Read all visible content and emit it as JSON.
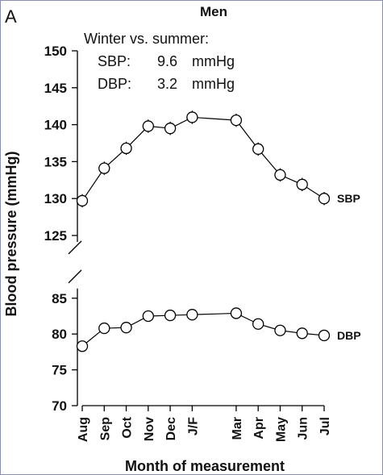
{
  "panel_label": "A",
  "annotation": {
    "heading": "Winter vs. summer:",
    "rows": [
      {
        "label": "SBP:",
        "value": "9.6",
        "unit": "mmHg"
      },
      {
        "label": "DBP:",
        "value": "3.2",
        "unit": "mmHg"
      }
    ]
  },
  "chart_data": {
    "type": "line",
    "title": "Men",
    "xlabel": "Month of measurement",
    "ylabel": "Blood pressure (mmHg)",
    "categories": [
      "Aug",
      "Sep",
      "Oct",
      "Nov",
      "Dec",
      "J/F",
      "Mar",
      "Apr",
      "May",
      "Jun",
      "Jul"
    ],
    "x_positions": [
      1,
      2,
      3,
      4,
      5,
      6,
      8,
      9,
      10,
      11,
      12
    ],
    "broken_y_axis": true,
    "upper_segment": {
      "ylim": [
        125,
        150
      ],
      "ticks": [
        125,
        130,
        135,
        140,
        145,
        150
      ]
    },
    "lower_segment": {
      "ylim": [
        70,
        87
      ],
      "ticks": [
        70,
        75,
        80,
        85
      ]
    },
    "series": [
      {
        "name": "SBP",
        "segment": "upper",
        "values": [
          129.7,
          134.1,
          136.8,
          139.8,
          139.5,
          141.0,
          140.6,
          136.7,
          133.2,
          131.9,
          130.0
        ],
        "error": [
          0.9,
          0.9,
          0.9,
          0.9,
          0.9,
          0.9,
          0.9,
          0.9,
          0.9,
          0.9,
          0.9
        ]
      },
      {
        "name": "DBP",
        "segment": "lower",
        "values": [
          78.3,
          80.8,
          80.9,
          82.5,
          82.6,
          82.7,
          82.9,
          81.4,
          80.5,
          80.1,
          79.8
        ],
        "error": [
          0.5,
          0.5,
          0.5,
          0.5,
          0.5,
          0.5,
          0.5,
          0.5,
          0.5,
          0.5,
          0.5
        ]
      }
    ],
    "marker": "open-circle",
    "line_color": "#000000",
    "grid": false
  }
}
